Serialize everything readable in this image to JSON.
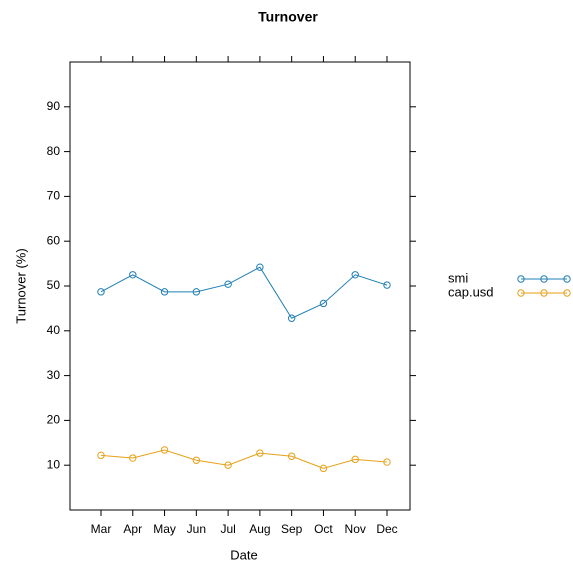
{
  "chart_data": {
    "type": "line",
    "title": "Turnover",
    "x_label": "Date",
    "y_label": "Turnover (%)",
    "categories": [
      "Mar",
      "Apr",
      "May",
      "Jun",
      "Jul",
      "Aug",
      "Sep",
      "Oct",
      "Nov",
      "Dec"
    ],
    "series": [
      {
        "name": "smi",
        "color": "#1f7fb4",
        "values": [
          48.7,
          52.5,
          48.7,
          48.7,
          50.4,
          54.2,
          42.8,
          46.1,
          52.5,
          50.2
        ]
      },
      {
        "name": "cap.usd",
        "color": "#e6a117",
        "values": [
          12.2,
          11.6,
          13.4,
          11.1,
          10.0,
          12.7,
          12.0,
          9.3,
          11.3,
          10.7
        ]
      }
    ],
    "ylim": [
      0,
      100
    ],
    "yticks": [
      10,
      20,
      30,
      40,
      50,
      60,
      70,
      80,
      90
    ],
    "legend": "right"
  }
}
